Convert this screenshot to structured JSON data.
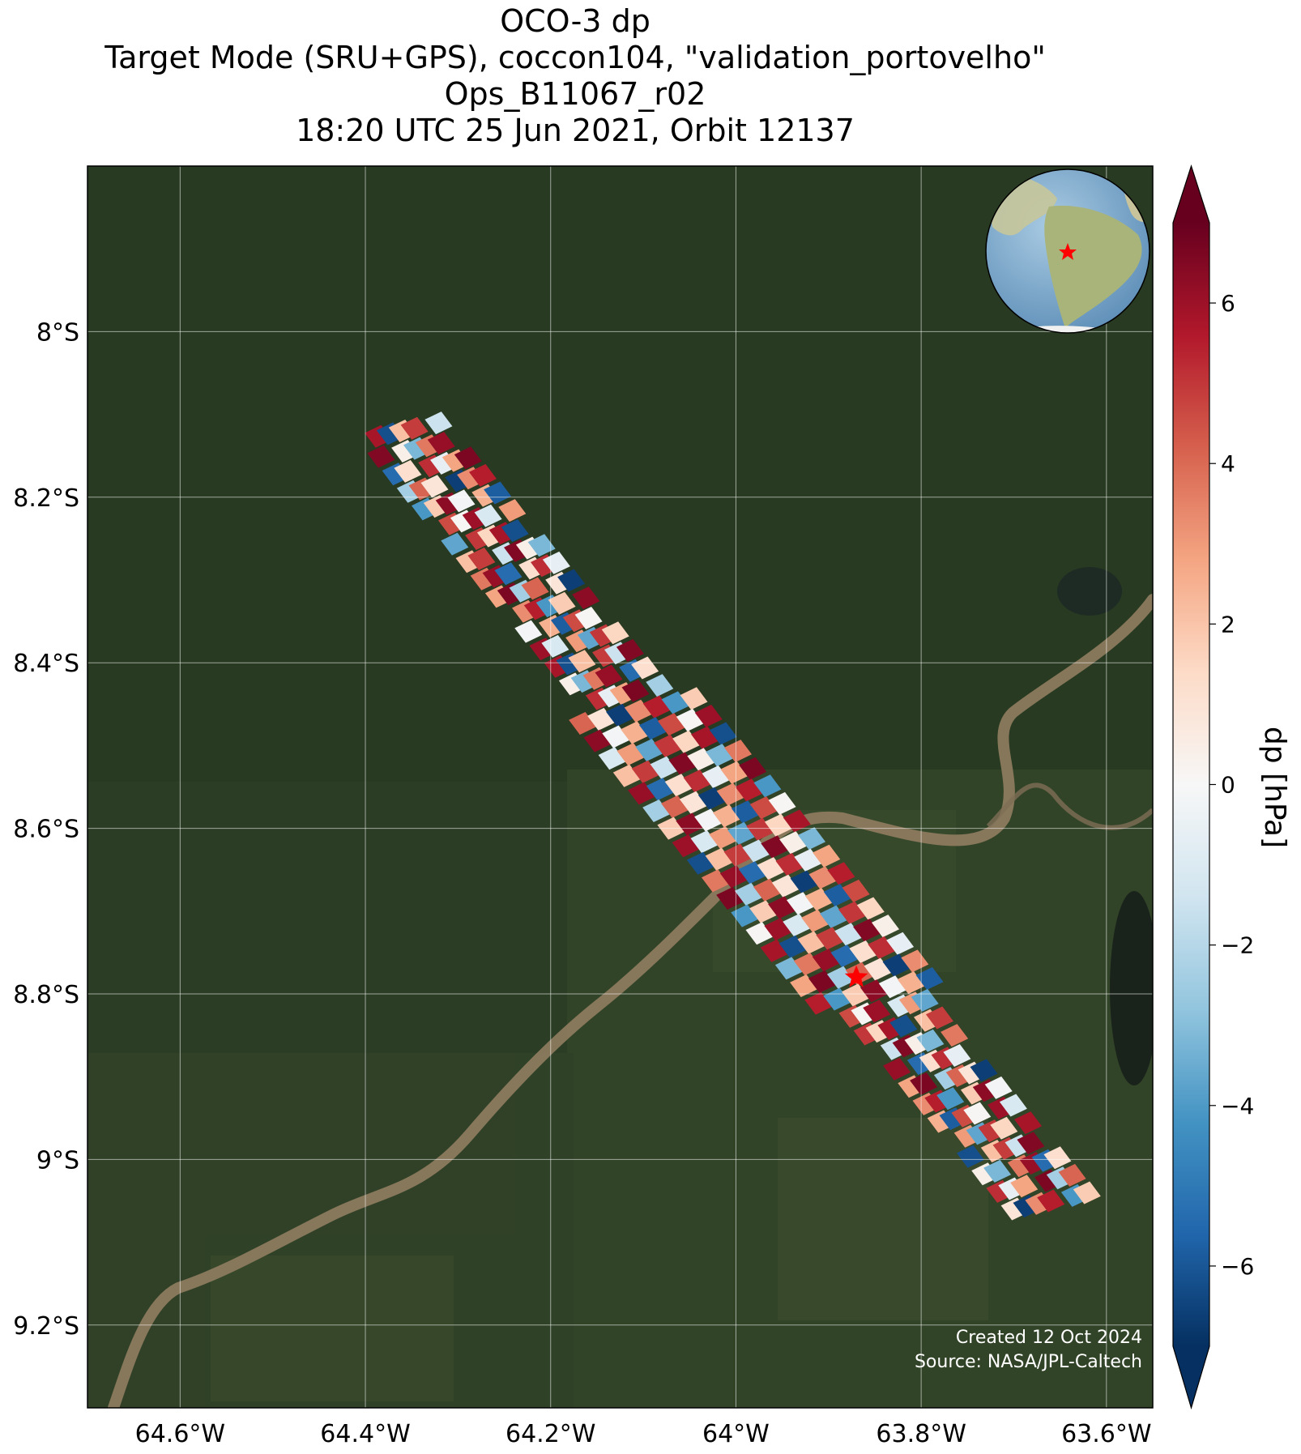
{
  "title": {
    "line1": "OCO-3 dp",
    "line2": "Target Mode (SRU+GPS), coccon104, \"validation_portovelho\"",
    "line3": "Ops_B11067_r02",
    "line4": "18:20 UTC 25 Jun 2021, Orbit 12137"
  },
  "map": {
    "lon_range": [
      -64.7,
      -63.55
    ],
    "lat_range": [
      -9.3,
      -7.8
    ],
    "lon_ticks": [
      {
        "value": -64.6,
        "label": "64.6°W"
      },
      {
        "value": -64.4,
        "label": "64.4°W"
      },
      {
        "value": -64.2,
        "label": "64.2°W"
      },
      {
        "value": -64.0,
        "label": "64°W"
      },
      {
        "value": -63.8,
        "label": "63.8°W"
      },
      {
        "value": -63.6,
        "label": "63.6°W"
      }
    ],
    "lat_ticks": [
      {
        "value": -8.0,
        "label": "8°S"
      },
      {
        "value": -8.2,
        "label": "8.2°S"
      },
      {
        "value": -8.4,
        "label": "8.4°S"
      },
      {
        "value": -8.6,
        "label": "8.6°S"
      },
      {
        "value": -8.8,
        "label": "8.8°S"
      },
      {
        "value": -9.0,
        "label": "9°S"
      },
      {
        "value": -9.2,
        "label": "9.2°S"
      }
    ],
    "grid": true,
    "target_site": {
      "lon": -63.87,
      "lat": -8.78,
      "marker": "red-star"
    },
    "background": "satellite imagery (forest, river)",
    "inset": "orthographic globe with red star over South America",
    "credits": {
      "created": "Created 12 Oct 2024",
      "source": "Source: NASA/JPL-Caltech"
    }
  },
  "colorbar": {
    "label": "dp [hPa]",
    "range": [
      -7,
      7
    ],
    "ticks": [
      {
        "value": 6,
        "label": "6"
      },
      {
        "value": 4,
        "label": "4"
      },
      {
        "value": 2,
        "label": "2"
      },
      {
        "value": 0,
        "label": "0"
      },
      {
        "value": -2,
        "label": "−2"
      },
      {
        "value": -4,
        "label": "−4"
      },
      {
        "value": -6,
        "label": "−6"
      }
    ],
    "colormap": "RdBu_r",
    "extend": "both"
  },
  "colors": {
    "map_bg": "#2b3d24",
    "river": "#8c7a5e",
    "target_star": "#ff0000"
  },
  "soundings": {
    "swath_start": {
      "lon": -64.36,
      "lat": -8.12
    },
    "swath_end": {
      "lon": -63.66,
      "lat": -9.05
    },
    "lon_offsets": [
      -0.06,
      -0.04,
      -0.02,
      0.0,
      0.02,
      0.04,
      0.06
    ],
    "steps": 44,
    "value_sequence": [
      5.8,
      -6.2,
      2.1,
      4.9,
      -1.5,
      6.5,
      0.4,
      -3.2,
      3.7,
      6.1,
      -5.4,
      1.2,
      5.2,
      -0.6,
      2.8,
      6.6,
      -2.4,
      4.1,
      0.9,
      -6.6,
      3.3,
      5.5,
      -4.1,
      1.8,
      6.3,
      -0.2,
      2.5,
      -5.8,
      4.6,
      0.1,
      6.0,
      -1.1,
      3.0,
      -3.7,
      5.0,
      1.5
    ]
  }
}
